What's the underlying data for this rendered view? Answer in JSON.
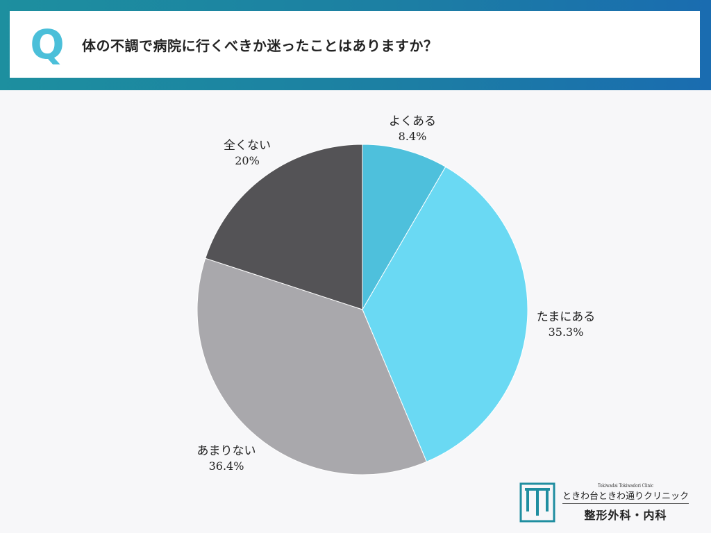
{
  "header": {
    "q_mark": "Q",
    "question": "体の不調で病院に行くべきか迷ったことはありますか？"
  },
  "colors": {
    "band": "#1c7fa3",
    "q_mark": "#4bbfd9",
    "slices": [
      "#4ec0dc",
      "#6ad9f3",
      "#a9a8ac",
      "#545356"
    ]
  },
  "chart_data": {
    "type": "pie",
    "title": "",
    "start_angle": "12 o'clock",
    "direction": "clockwise",
    "slices": [
      {
        "label": "よくある",
        "value": 8.4,
        "value_label": "8.4%"
      },
      {
        "label": "たまにある",
        "value": 35.3,
        "value_label": "35.3%"
      },
      {
        "label": "あまりない",
        "value": 36.4,
        "value_label": "36.4%"
      },
      {
        "label": "全くない",
        "value": 20,
        "value_label": "20%"
      }
    ]
  },
  "logo": {
    "subtitle": "Tokiwadai Tokiwadori Clinic",
    "name": "ときわ台ときわ通りクリニック",
    "department": "整形外科・内科",
    "mark": "T"
  }
}
